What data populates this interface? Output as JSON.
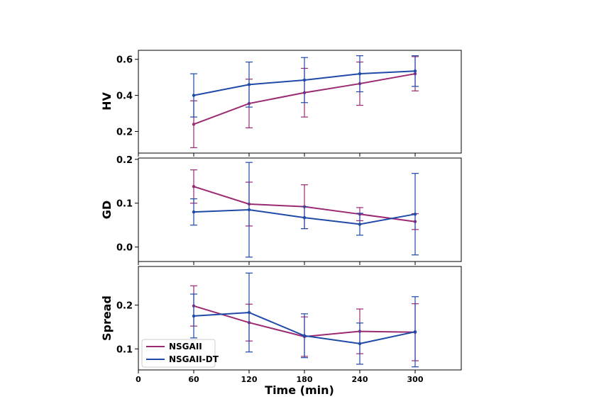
{
  "chart_data": {
    "type": "line",
    "xlabel": "Time (min)",
    "x_ticks": [
      "0",
      "60",
      "120",
      "180",
      "240",
      "300"
    ],
    "x": [
      60,
      120,
      180,
      240,
      300
    ],
    "xlim": [
      0,
      350
    ],
    "legend": {
      "position": "lower-left",
      "entries": [
        "NSGAII",
        "NSGAII-DT"
      ]
    },
    "colors": {
      "NSGAII": "#9b2a73",
      "NSGAII-DT": "#1f4aa8"
    },
    "panels": [
      {
        "ylabel": "HV",
        "ylim": [
          0.08,
          0.65
        ],
        "y_ticks": [
          0.2,
          0.4,
          0.6
        ],
        "y_tick_labels": [
          "0.2",
          "0.4",
          "0.6"
        ],
        "series": [
          {
            "name": "NSGAII",
            "values": [
              0.24,
              0.355,
              0.415,
              0.465,
              0.52
            ],
            "err": [
              0.13,
              0.135,
              0.135,
              0.12,
              0.095
            ]
          },
          {
            "name": "NSGAII-DT",
            "values": [
              0.4,
              0.46,
              0.485,
              0.52,
              0.535
            ],
            "err": [
              0.12,
              0.125,
              0.125,
              0.1,
              0.085
            ]
          }
        ]
      },
      {
        "ylabel": "GD",
        "ylim": [
          -0.033,
          0.203
        ],
        "y_ticks": [
          0.0,
          0.1,
          0.2
        ],
        "y_tick_labels": [
          "0.0",
          "0.1",
          "0.2"
        ],
        "series": [
          {
            "name": "NSGAII",
            "values": [
              0.138,
              0.098,
              0.092,
              0.075,
              0.058
            ],
            "err": [
              0.038,
              0.05,
              0.05,
              0.015,
              0.018
            ]
          },
          {
            "name": "NSGAII-DT",
            "values": [
              0.08,
              0.085,
              0.067,
              0.052,
              0.075
            ],
            "err": [
              0.03,
              0.108,
              0.025,
              0.025,
              0.093
            ]
          }
        ]
      },
      {
        "ylabel": "Spread",
        "ylim": [
          0.052,
          0.288
        ],
        "y_ticks": [
          0.1,
          0.2
        ],
        "y_tick_labels": [
          "0.1",
          "0.2"
        ],
        "series": [
          {
            "name": "NSGAII",
            "values": [
              0.198,
              0.16,
              0.128,
              0.14,
              0.138
            ],
            "err": [
              0.046,
              0.042,
              0.045,
              0.051,
              0.065
            ]
          },
          {
            "name": "NSGAII-DT",
            "values": [
              0.175,
              0.183,
              0.13,
              0.112,
              0.139
            ],
            "err": [
              0.05,
              0.09,
              0.05,
              0.047,
              0.08
            ]
          }
        ]
      }
    ]
  }
}
